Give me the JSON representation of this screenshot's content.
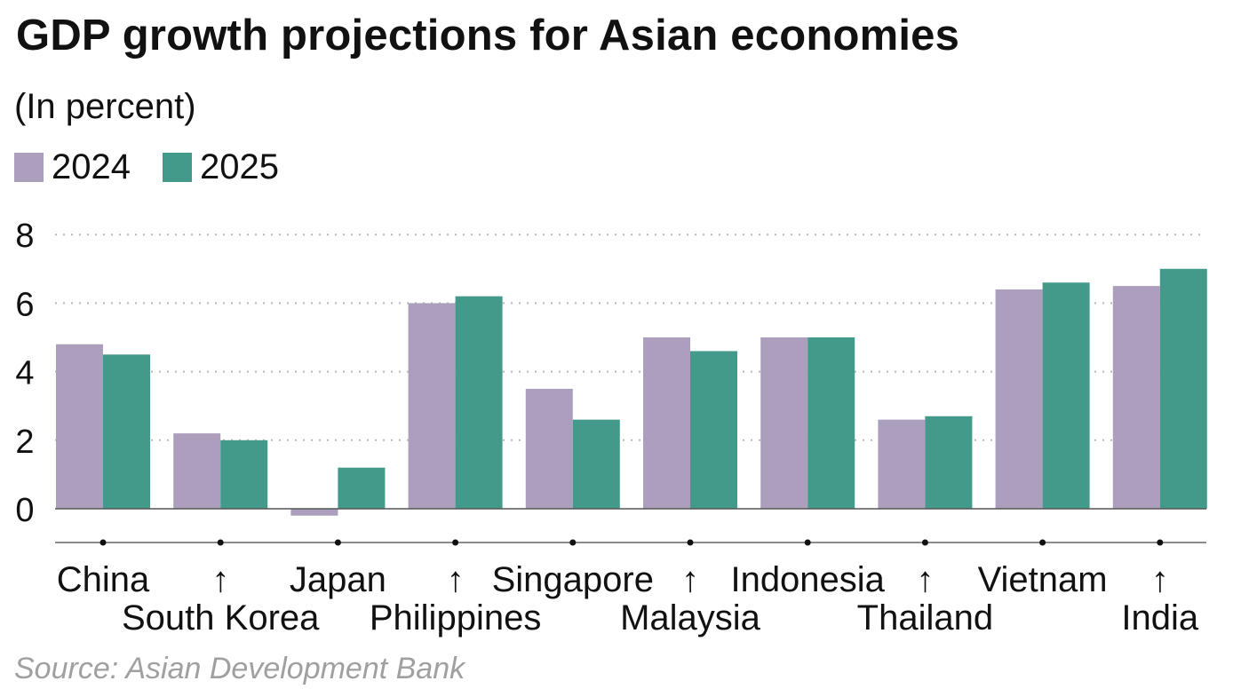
{
  "chart_data": {
    "type": "bar",
    "title": "GDP growth projections for Asian economies",
    "subtitle": "(In percent)",
    "categories": [
      "China",
      "South Korea",
      "Japan",
      "Philippines",
      "Singapore",
      "Malaysia",
      "Indonesia",
      "Thailand",
      "Vietnam",
      "India"
    ],
    "category_labels": [
      {
        "text": "China",
        "row": 1
      },
      {
        "text": "↑",
        "row": 1
      },
      {
        "text": "South Korea",
        "row": 2
      },
      {
        "text": "Japan",
        "row": 1
      },
      {
        "text": "↑",
        "row": 1
      },
      {
        "text": "Philippines",
        "row": 2
      },
      {
        "text": "Singapore",
        "row": 1
      },
      {
        "text": "↑",
        "row": 1
      },
      {
        "text": "Malaysia",
        "row": 2
      },
      {
        "text": "Indonesia",
        "row": 1
      },
      {
        "text": "↑",
        "row": 1
      },
      {
        "text": "Thailand",
        "row": 2
      },
      {
        "text": "Vietnam",
        "row": 1
      },
      {
        "text": "↑",
        "row": 1
      },
      {
        "text": "India",
        "row": 2
      }
    ],
    "series": [
      {
        "name": "2024",
        "color": "#ab9fbd",
        "values": [
          4.8,
          2.2,
          -0.2,
          6.0,
          3.5,
          5.0,
          5.0,
          2.6,
          6.4,
          6.5
        ]
      },
      {
        "name": "2025",
        "color": "#449a8a",
        "values": [
          4.5,
          2.0,
          1.2,
          6.2,
          2.6,
          4.6,
          5.0,
          2.7,
          6.6,
          7.0
        ]
      }
    ],
    "ylim": [
      -1,
      8
    ],
    "yticks": [
      "0",
      "2",
      "4",
      "6",
      "8"
    ],
    "grid": true,
    "xlabel": "",
    "ylabel": "",
    "legend_position": "top-left",
    "source": "Source: Asian Development Bank"
  }
}
